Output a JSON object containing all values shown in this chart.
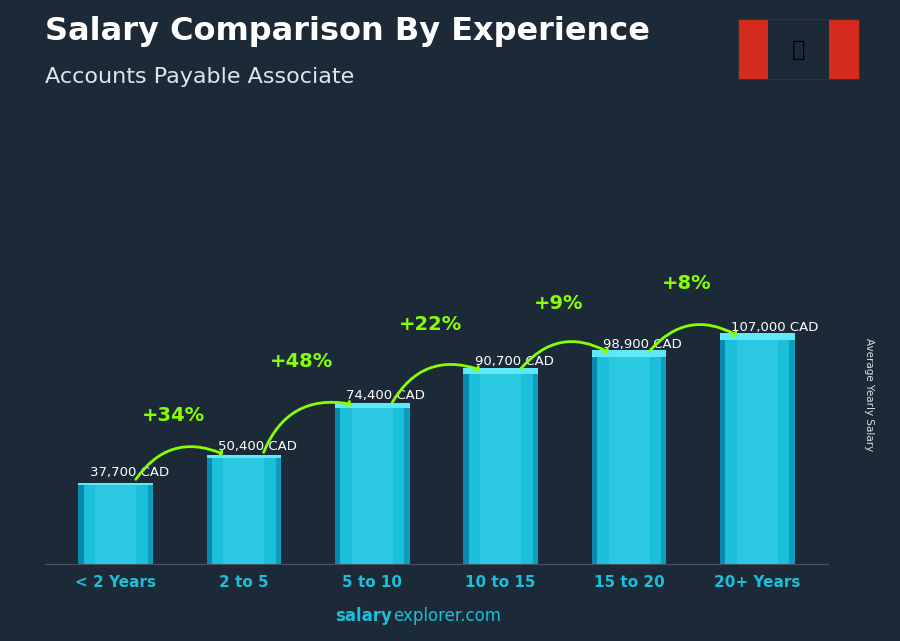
{
  "title": "Salary Comparison By Experience",
  "subtitle": "Accounts Payable Associate",
  "categories": [
    "< 2 Years",
    "2 to 5",
    "5 to 10",
    "10 to 15",
    "15 to 20",
    "20+ Years"
  ],
  "values": [
    37700,
    50400,
    74400,
    90700,
    98900,
    107000
  ],
  "labels": [
    "37,700 CAD",
    "50,400 CAD",
    "74,400 CAD",
    "90,700 CAD",
    "98,900 CAD",
    "107,000 CAD"
  ],
  "pct_changes": [
    "+34%",
    "+48%",
    "+22%",
    "+9%",
    "+8%"
  ],
  "bar_color_main": "#1bbfda",
  "bar_color_light": "#4dd8ee",
  "bar_color_dark": "#0a8aaa",
  "bar_color_side": "#0d9dbf",
  "bar_color_top": "#5ee8f8",
  "bg_color": "#1c2a38",
  "title_color": "#ffffff",
  "subtitle_color": "#e0e8f0",
  "label_color": "#ffffff",
  "pct_color": "#88ff00",
  "tick_color": "#1bbfda",
  "ylabel_text": "Average Yearly Salary",
  "footer_bold": "salary",
  "footer_normal": "explorer.com"
}
